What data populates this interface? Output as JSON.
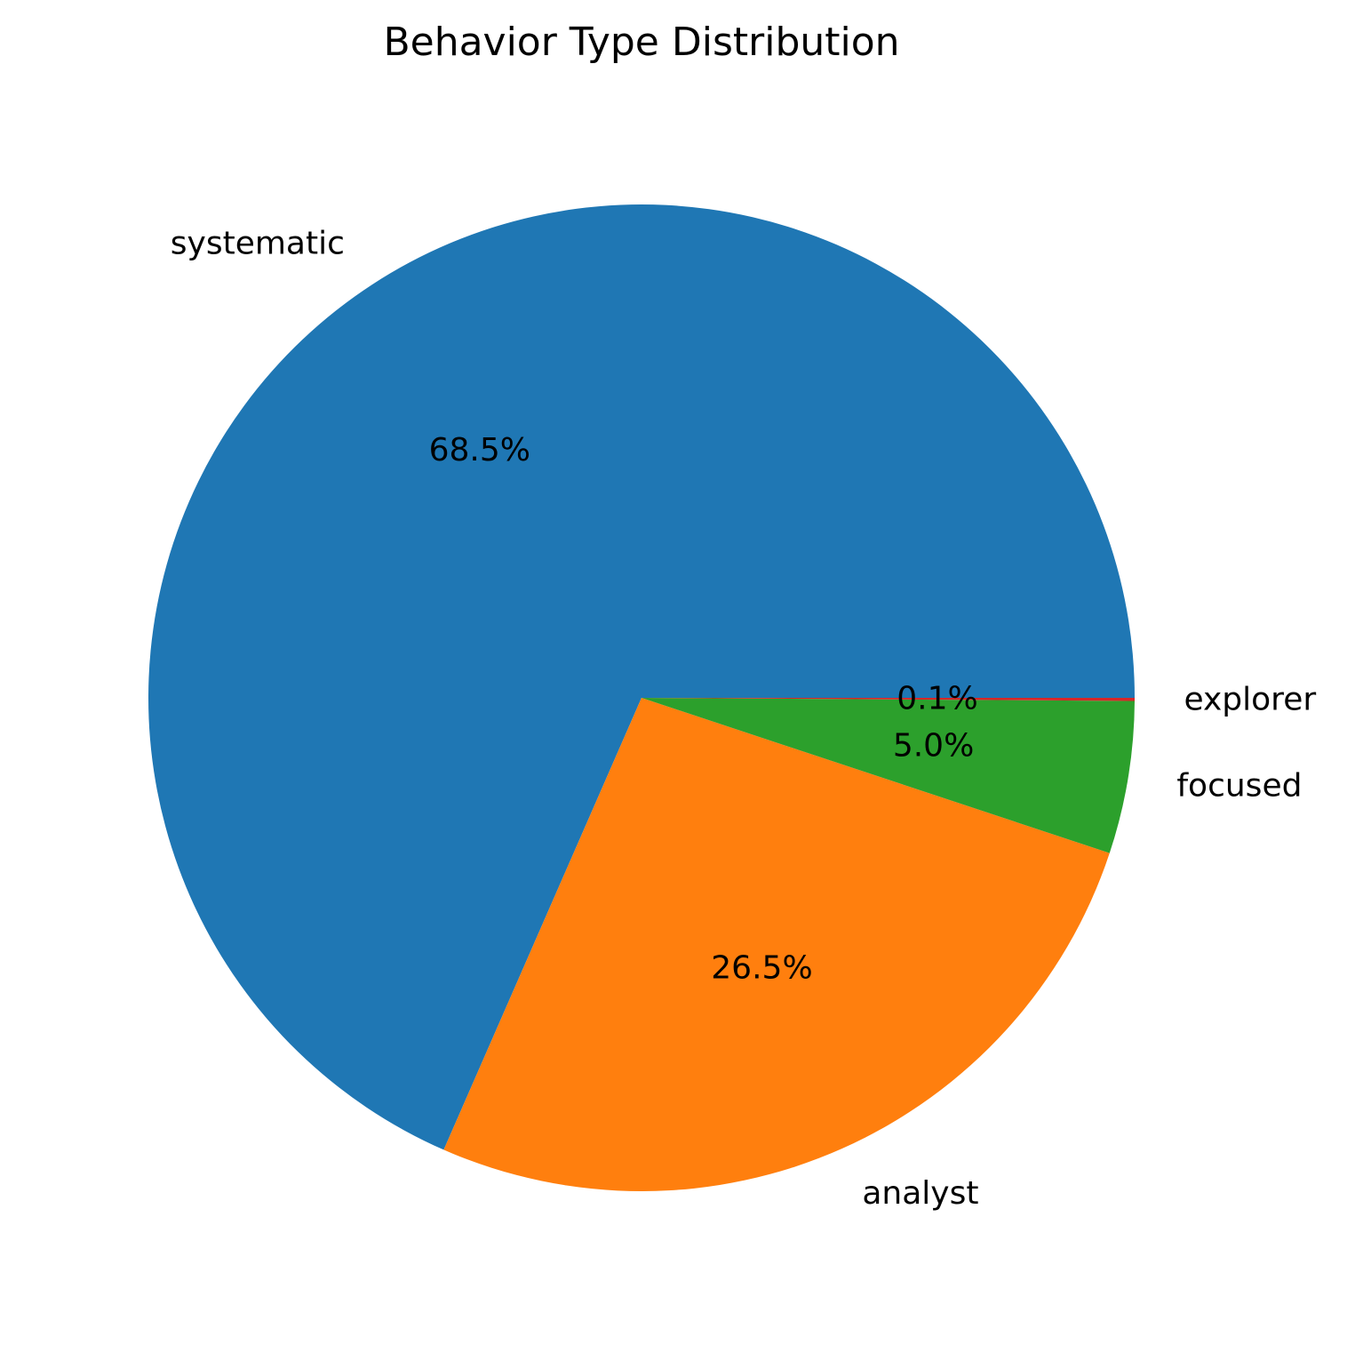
{
  "chart_data": {
    "type": "pie",
    "title": "Behavior Type Distribution",
    "start_angle_deg": 0,
    "direction": "counterclockwise",
    "slices": [
      {
        "label": "systematic",
        "value": 68.5,
        "pct_label": "68.5%",
        "color": "#1f77b4"
      },
      {
        "label": "analyst",
        "value": 26.5,
        "pct_label": "26.5%",
        "color": "#ff7f0e"
      },
      {
        "label": "focused",
        "value": 5.0,
        "pct_label": "5.0%",
        "color": "#2ca02c"
      },
      {
        "label": "explorer",
        "value": 0.1,
        "pct_label": "0.1%",
        "color": "#d62728"
      }
    ]
  }
}
